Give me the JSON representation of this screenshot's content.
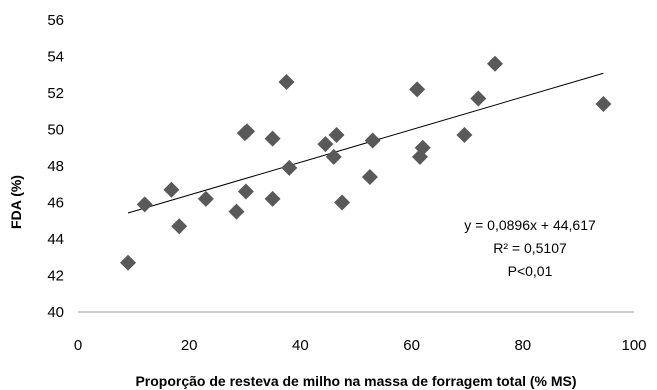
{
  "chart_data": {
    "type": "scatter",
    "xlabel": "Proporção de resteva de milho na massa de forragem total (% MS)",
    "ylabel": "FDA (%)",
    "xlim": [
      0,
      100
    ],
    "ylim": [
      40,
      56
    ],
    "x_ticks": [
      "0",
      "20",
      "40",
      "60",
      "80",
      "100"
    ],
    "y_ticks": [
      "40",
      "42",
      "44",
      "46",
      "48",
      "50",
      "52",
      "54",
      "56"
    ],
    "grid": false,
    "marker": "diamond",
    "marker_color": "#595959",
    "points": [
      {
        "x": 9.0,
        "y": 42.7
      },
      {
        "x": 12.0,
        "y": 45.9
      },
      {
        "x": 16.8,
        "y": 46.7
      },
      {
        "x": 18.2,
        "y": 44.7
      },
      {
        "x": 23.0,
        "y": 46.2
      },
      {
        "x": 28.5,
        "y": 45.5
      },
      {
        "x": 30.0,
        "y": 49.8
      },
      {
        "x": 30.4,
        "y": 49.9
      },
      {
        "x": 30.2,
        "y": 46.6
      },
      {
        "x": 35.0,
        "y": 49.5
      },
      {
        "x": 35.0,
        "y": 46.2
      },
      {
        "x": 37.5,
        "y": 52.6
      },
      {
        "x": 38.0,
        "y": 47.9
      },
      {
        "x": 44.5,
        "y": 49.2
      },
      {
        "x": 46.0,
        "y": 48.5
      },
      {
        "x": 46.5,
        "y": 49.7
      },
      {
        "x": 47.5,
        "y": 46.0
      },
      {
        "x": 52.5,
        "y": 47.4
      },
      {
        "x": 53.0,
        "y": 49.4
      },
      {
        "x": 61.0,
        "y": 52.2
      },
      {
        "x": 61.5,
        "y": 48.5
      },
      {
        "x": 62.0,
        "y": 49.0
      },
      {
        "x": 69.5,
        "y": 49.7
      },
      {
        "x": 72.0,
        "y": 51.7
      },
      {
        "x": 75.0,
        "y": 53.6
      },
      {
        "x": 94.5,
        "y": 51.4
      }
    ],
    "trendline": {
      "slope": 0.0896,
      "intercept": 44.617,
      "x_range": [
        9,
        94.5
      ],
      "color": "#000000"
    },
    "annotations": [
      "y = 0,0896x + 44,617",
      "R² = 0,5107",
      "P<0,01"
    ]
  }
}
